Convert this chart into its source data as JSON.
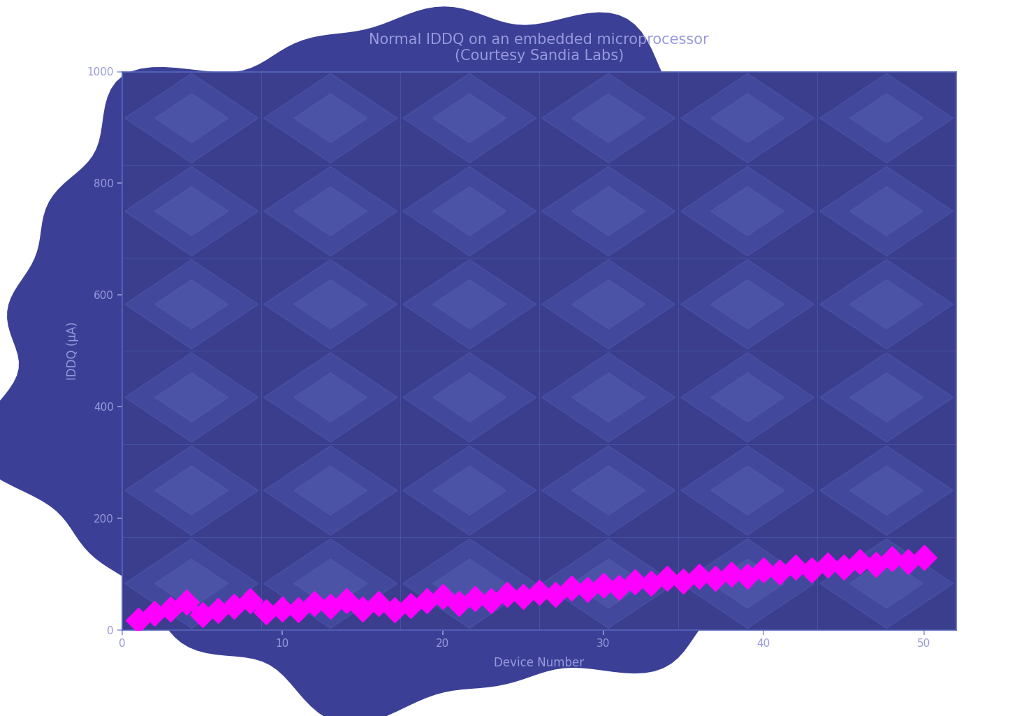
{
  "title": "Normal IDDQ on an embedded microprocessor\n(Courtesy Sandia Labs)",
  "xlabel": "Device Number",
  "ylabel": "IDDQ (µA)",
  "x_values": [
    1,
    2,
    3,
    4,
    5,
    6,
    7,
    8,
    9,
    10,
    11,
    12,
    13,
    14,
    15,
    16,
    17,
    18,
    19,
    20,
    21,
    22,
    23,
    24,
    25,
    26,
    27,
    28,
    29,
    30,
    31,
    32,
    33,
    34,
    35,
    36,
    37,
    38,
    39,
    40,
    41,
    42,
    43,
    44,
    45,
    46,
    47,
    48,
    49,
    50
  ],
  "y_values": [
    18,
    30,
    38,
    50,
    28,
    35,
    42,
    52,
    32,
    38,
    36,
    48,
    42,
    52,
    38,
    48,
    36,
    44,
    52,
    60,
    48,
    56,
    52,
    64,
    60,
    68,
    64,
    75,
    72,
    80,
    76,
    86,
    84,
    92,
    88,
    96,
    92,
    100,
    96,
    108,
    104,
    112,
    108,
    116,
    112,
    122,
    118,
    128,
    122,
    130
  ],
  "line_color": "#FF00FF",
  "line_width": 8,
  "marker": "D",
  "marker_size": 18,
  "bg_color_outer": "#FFFFFF",
  "bg_color_plot": "#3A3E8C",
  "bg_color_figure": "#3A3E8C",
  "grid_color": "#5565BB",
  "diamond_fill_color": "#4A52A8",
  "diamond_lighter_color": "#5A64B8",
  "title_color": "#9999DD",
  "label_color": "#9999DD",
  "tick_color": "#9999DD",
  "ylim": [
    0,
    1000
  ],
  "xlim": [
    0,
    52
  ],
  "yticks": [
    0,
    200,
    400,
    600,
    800,
    1000
  ],
  "xticks": [
    0,
    10,
    20,
    30,
    40,
    50
  ],
  "title_fontsize": 15,
  "label_fontsize": 12,
  "tick_fontsize": 11,
  "n_grid_x": 5,
  "n_grid_y": 5,
  "blob_color": "#3B4096",
  "blob_edge_color": "#4A52A8"
}
